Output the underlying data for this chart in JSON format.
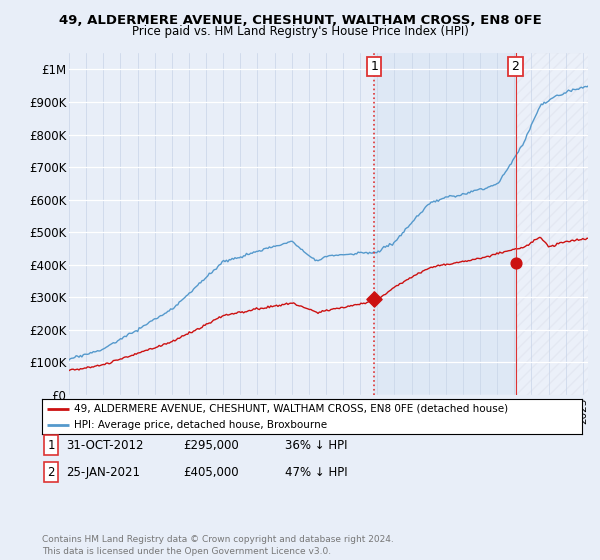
{
  "title1": "49, ALDERMERE AVENUE, CHESHUNT, WALTHAM CROSS, EN8 0FE",
  "title2": "Price paid vs. HM Land Registry's House Price Index (HPI)",
  "hpi_color": "#5599cc",
  "price_color": "#cc1111",
  "vline_color": "#dd3333",
  "background_color": "#e8eef8",
  "grid_color": "#c8d4e8",
  "shade_color": "#dde8f5",
  "transaction1_date": 2012.83,
  "transaction1_price": 295000,
  "transaction2_date": 2021.07,
  "transaction2_price": 405000,
  "legend_line1": "49, ALDERMERE AVENUE, CHESHUNT, WALTHAM CROSS, EN8 0FE (detached house)",
  "legend_line2": "HPI: Average price, detached house, Broxbourne",
  "footer": "Contains HM Land Registry data © Crown copyright and database right 2024.\nThis data is licensed under the Open Government Licence v3.0.",
  "xmin": 1995.0,
  "xmax": 2025.3,
  "ylim": [
    0,
    1050000
  ],
  "yticks": [
    0,
    100000,
    200000,
    300000,
    400000,
    500000,
    600000,
    700000,
    800000,
    900000,
    1000000
  ],
  "ytick_labels": [
    "£0",
    "£100K",
    "£200K",
    "£300K",
    "£400K",
    "£500K",
    "£600K",
    "£700K",
    "£800K",
    "£900K",
    "£1M"
  ]
}
